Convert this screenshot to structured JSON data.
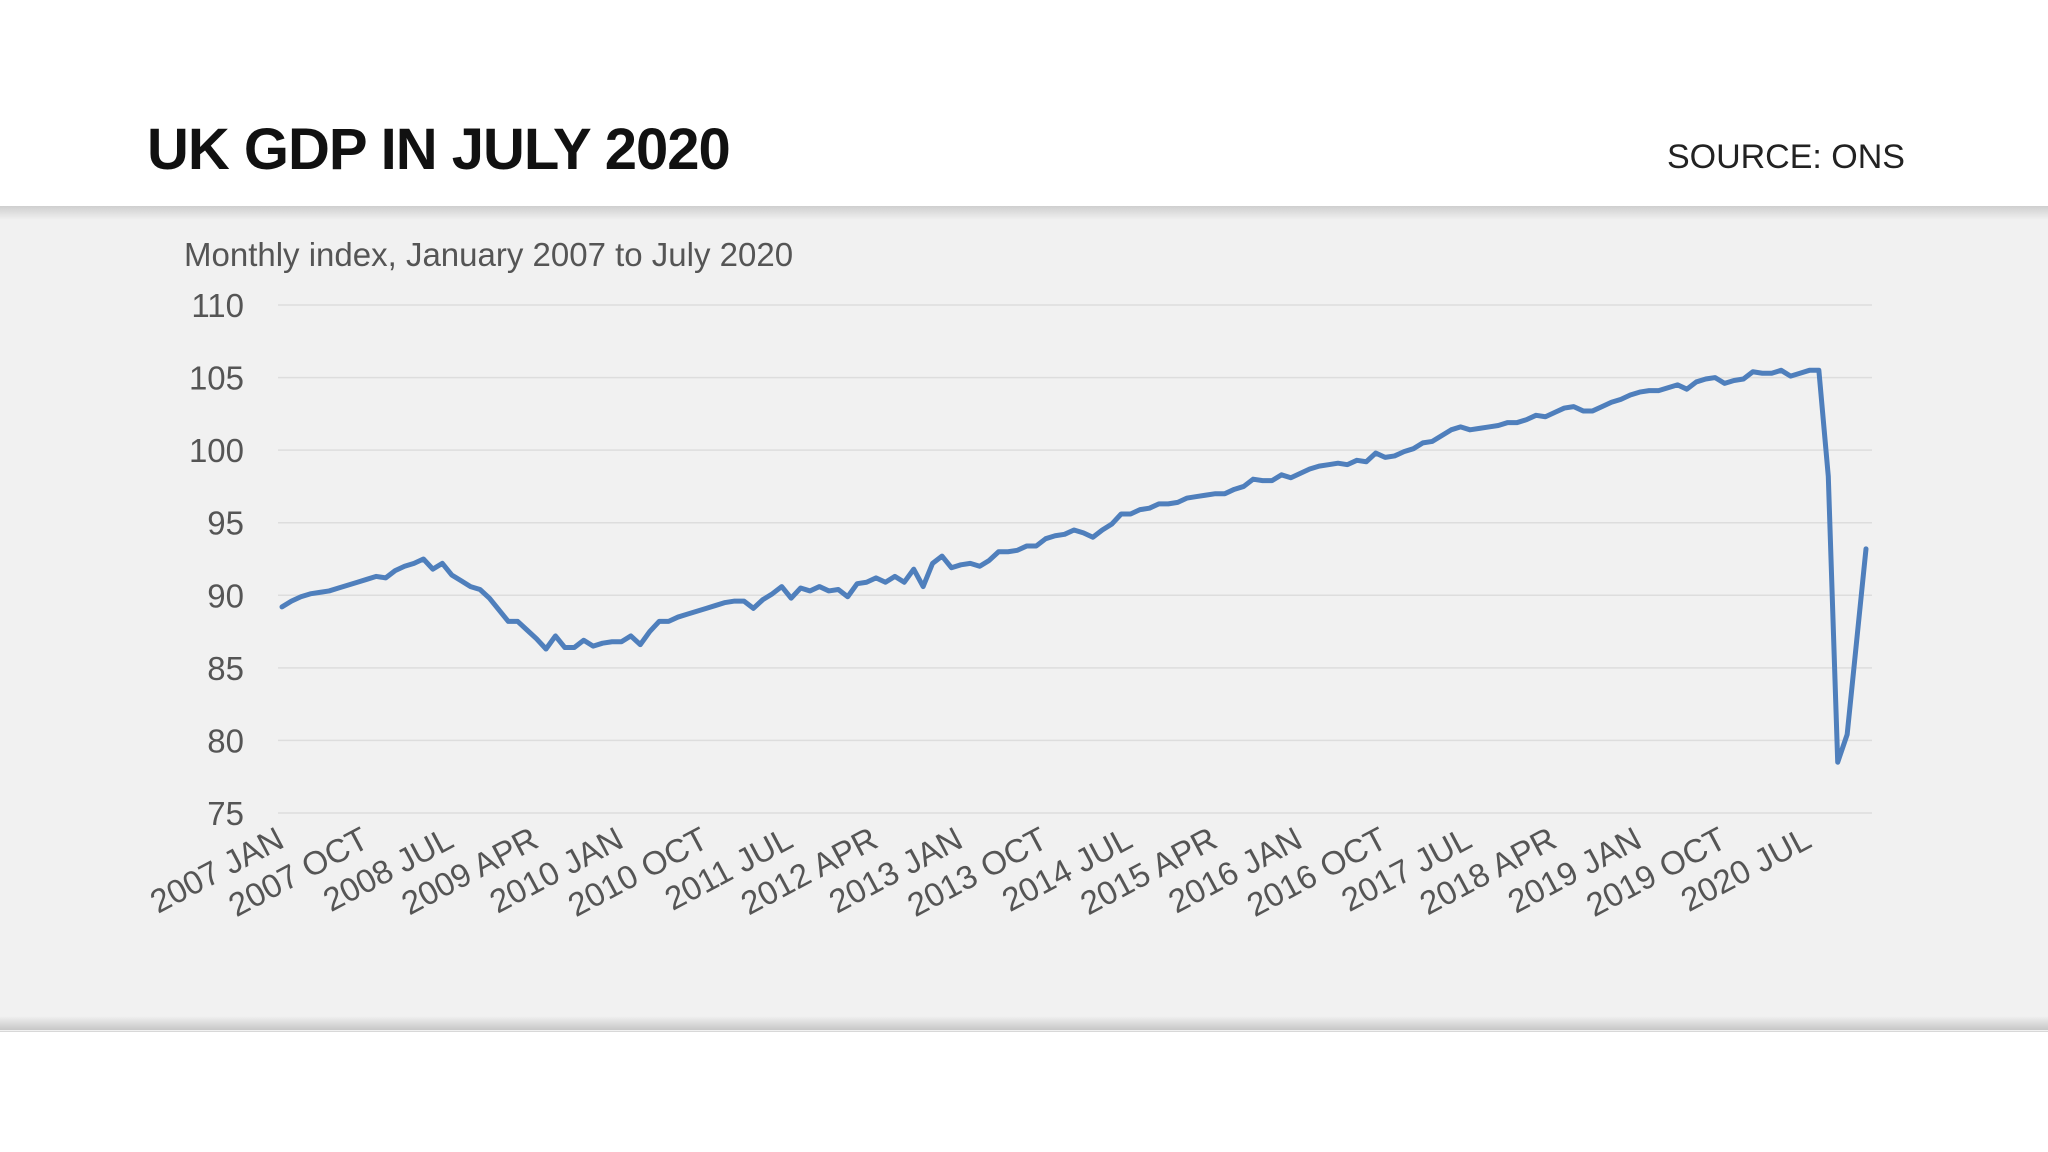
{
  "header": {
    "title": "UK GDP IN JULY 2020",
    "source": "SOURCE: ONS"
  },
  "colors": {
    "line": "#4f7fbc",
    "panel_background": "#f1f1f1",
    "gridline": "#dddddd",
    "text": "#555555"
  },
  "chart_data": {
    "type": "line",
    "subtitle": "Monthly index, January 2007 to July 2020",
    "xlabel": "",
    "ylabel": "",
    "ylim": [
      75,
      110
    ],
    "yticks": [
      "110",
      "105",
      "100",
      "95",
      "90",
      "85",
      "80",
      "75"
    ],
    "grid": true,
    "legend": "none",
    "x_start": "2007 JAN",
    "x_end": "2020 JUL",
    "xtick_labels": [
      "2007 JAN",
      "2007 OCT",
      "2008 JUL",
      "2009 APR",
      "2010 JAN",
      "2010 OCT",
      "2011 JUL",
      "2012 APR",
      "2013 JAN",
      "2013 OCT",
      "2014 JUL",
      "2015 APR",
      "2016 JAN",
      "2016 OCT",
      "2017 JUL",
      "2018 APR",
      "2019 JAN",
      "2019 OCT",
      "2020 JUL"
    ],
    "series": [
      {
        "values": [
          89.2,
          89.6,
          89.9,
          90.1,
          90.2,
          90.3,
          90.5,
          90.7,
          90.9,
          91.1,
          91.3,
          91.2,
          91.7,
          92.0,
          92.2,
          92.5,
          91.8,
          92.2,
          91.4,
          91.0,
          90.6,
          90.4,
          89.8,
          89.0,
          88.2,
          88.2,
          87.6,
          87.0,
          86.3,
          87.2,
          86.4,
          86.4,
          86.9,
          86.5,
          86.7,
          86.8,
          86.8,
          87.2,
          86.6,
          87.5,
          88.2,
          88.2,
          88.5,
          88.7,
          88.9,
          89.1,
          89.3,
          89.5,
          89.6,
          89.6,
          89.1,
          89.7,
          90.1,
          90.6,
          89.8,
          90.5,
          90.3,
          90.6,
          90.3,
          90.4,
          89.9,
          90.8,
          90.9,
          91.2,
          90.9,
          91.3,
          90.9,
          91.8,
          90.6,
          92.2,
          92.7,
          91.9,
          92.1,
          92.2,
          92.0,
          92.4,
          93.0,
          93.0,
          93.1,
          93.4,
          93.4,
          93.9,
          94.1,
          94.2,
          94.5,
          94.3,
          94.0,
          94.5,
          94.9,
          95.6,
          95.6,
          95.9,
          96.0,
          96.3,
          96.3,
          96.4,
          96.7,
          96.8,
          96.9,
          97.0,
          97.0,
          97.3,
          97.5,
          98.0,
          97.9,
          97.9,
          98.3,
          98.1,
          98.4,
          98.7,
          98.9,
          99.0,
          99.1,
          99.0,
          99.3,
          99.2,
          99.8,
          99.5,
          99.6,
          99.9,
          100.1,
          100.5,
          100.6,
          101.0,
          101.4,
          101.6,
          101.4,
          101.5,
          101.6,
          101.7,
          101.9,
          101.9,
          102.1,
          102.4,
          102.3,
          102.6,
          102.9,
          103.0,
          102.7,
          102.7,
          103.0,
          103.3,
          103.5,
          103.8,
          104.0,
          104.1,
          104.1,
          104.3,
          104.5,
          104.2,
          104.7,
          104.9,
          105.0,
          104.6,
          104.8,
          104.9,
          105.4,
          105.3,
          105.3,
          105.5,
          105.1,
          105.3,
          105.5,
          105.5,
          98.2,
          78.5,
          80.4,
          86.8,
          93.2
        ]
      }
    ]
  }
}
